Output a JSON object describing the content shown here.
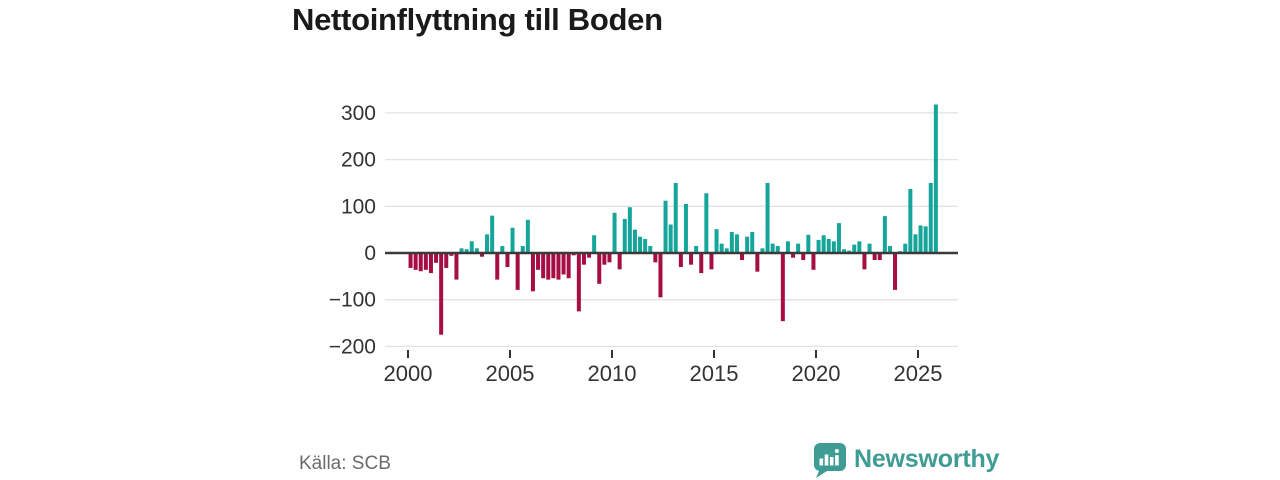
{
  "title": "Nettoinflyttning till Boden",
  "source": "Källa: SCB",
  "brand": {
    "name": "Newsworthy",
    "icon": "newsworthy-speech-bubble-chart-icon",
    "color": "#3f9c94"
  },
  "colors": {
    "positive_bar": "#16a59a",
    "negative_bar": "#a60d42",
    "gridline": "#e3e3e3",
    "zero_axis": "#3a3a3a",
    "tick_label": "#333333",
    "tick_mark": "#333333"
  },
  "chart_data": {
    "type": "bar",
    "title": "Nettoinflyttning till Boden",
    "x_unit": "quarter",
    "start": "2000 Q1",
    "end": "2025 Q4",
    "grid": true,
    "ylim": [
      -200,
      320
    ],
    "y_ticks": [
      300,
      200,
      100,
      0,
      -100,
      -200
    ],
    "y_tick_labels": [
      "300",
      "200",
      "100",
      "0",
      "−100",
      "−200"
    ],
    "x_tick_years": [
      2000,
      2005,
      2010,
      2015,
      2020,
      2025
    ],
    "x_tick_labels": [
      "2000",
      "2005",
      "2010",
      "2015",
      "2020",
      "2025"
    ],
    "series": [
      {
        "name": "Nettoinflyttning",
        "values": [
          -32,
          -36,
          -39,
          -36,
          -43,
          -21,
          -175,
          -32,
          -6,
          -57,
          10,
          8,
          25,
          10,
          -8,
          40,
          80,
          -57,
          15,
          -30,
          54,
          -79,
          15,
          71,
          -82,
          -36,
          -54,
          -57,
          -54,
          -57,
          -46,
          -54,
          -5,
          -125,
          -25,
          -10,
          38,
          -66,
          -25,
          -20,
          86,
          -35,
          73,
          98,
          50,
          35,
          30,
          15,
          -20,
          -95,
          112,
          61,
          150,
          -30,
          105,
          -25,
          15,
          -43,
          128,
          -35,
          51,
          20,
          10,
          45,
          40,
          -15,
          35,
          45,
          -40,
          10,
          150,
          20,
          15,
          -146,
          25,
          -10,
          20,
          -15,
          39,
          -36,
          28,
          38,
          30,
          25,
          64,
          8,
          5,
          18,
          25,
          -35,
          20,
          -15,
          -15,
          79,
          15,
          -79,
          4,
          20,
          137,
          40,
          59,
          57,
          150,
          318
        ]
      }
    ]
  }
}
